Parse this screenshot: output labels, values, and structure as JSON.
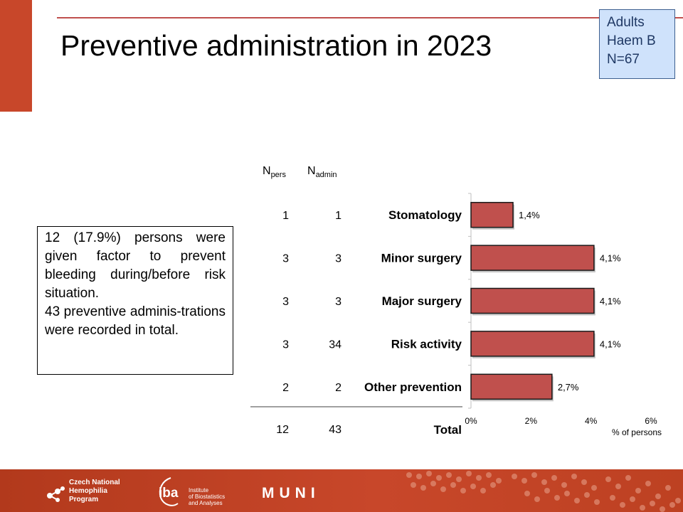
{
  "slide": {
    "title": "Preventive administration in 2023",
    "cohort": [
      "Adults",
      "Haem B",
      "N=67"
    ]
  },
  "note": {
    "p1": "12 (17.9%) persons were given factor to prevent bleeding during/before risk situation.",
    "p2": "43 preventive adminis-trations were recorded in total."
  },
  "headers": {
    "n_pers_main": "N",
    "n_pers_sub": "pers",
    "n_admin_main": "N",
    "n_admin_sub": "admin"
  },
  "chart_data": {
    "type": "bar",
    "orientation": "horizontal",
    "categories": [
      "Stomatology",
      "Minor surgery",
      "Major surgery",
      "Risk activity",
      "Other prevention"
    ],
    "values": [
      1.4,
      4.1,
      4.1,
      4.1,
      2.7
    ],
    "value_labels": [
      "1,4%",
      "4,1%",
      "4,1%",
      "4,1%",
      "2,7%"
    ],
    "n_pers": [
      "1",
      "3",
      "3",
      "3",
      "2"
    ],
    "n_admin": [
      "1",
      "3",
      "3",
      "34",
      "2"
    ],
    "total": {
      "label": "Total",
      "n_pers": "12",
      "n_admin": "43"
    },
    "xlim": [
      0,
      6
    ],
    "xticks": [
      0,
      2,
      4,
      6
    ],
    "xtick_labels": [
      "0%",
      "2%",
      "4%",
      "6%"
    ],
    "xlabel": "% of persons",
    "bar_color": "#c0504d",
    "bar_edge": "#1a1a1a",
    "grid": false
  },
  "colors": {
    "accent": "#c8472a",
    "title_rule": "#c0504d",
    "cohort_bg": "#cfe2fb",
    "cohort_text": "#1f3864"
  },
  "footer": {
    "logo1_lines": [
      "Czech National",
      "Hemophilia",
      "Program"
    ],
    "logo2_mark": "iba",
    "logo2_lines": [
      "Institute",
      "of Biostatistics",
      "and Analyses"
    ],
    "logo3": "MUNI"
  }
}
